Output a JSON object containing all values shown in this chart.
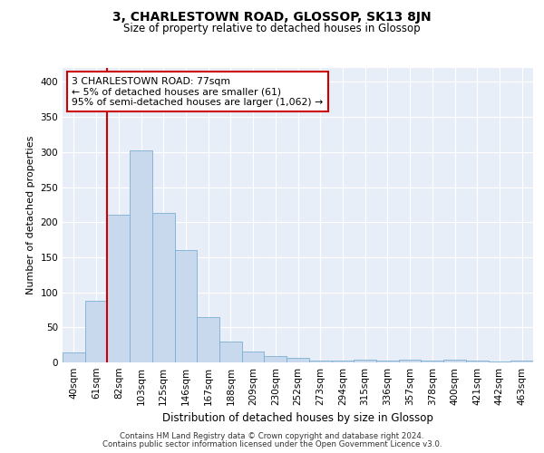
{
  "title": "3, CHARLESTOWN ROAD, GLOSSOP, SK13 8JN",
  "subtitle": "Size of property relative to detached houses in Glossop",
  "xlabel": "Distribution of detached houses by size in Glossop",
  "ylabel": "Number of detached properties",
  "bar_color": "#c9d9ed",
  "bar_edgecolor": "#7bafd4",
  "vline_color": "#cc0000",
  "vline_x": 1.5,
  "annotation_text": "3 CHARLESTOWN ROAD: 77sqm\n← 5% of detached houses are smaller (61)\n95% of semi-detached houses are larger (1,062) →",
  "annotation_box_facecolor": "#ffffff",
  "annotation_box_edgecolor": "#cc0000",
  "categories": [
    "40sqm",
    "61sqm",
    "82sqm",
    "103sqm",
    "125sqm",
    "146sqm",
    "167sqm",
    "188sqm",
    "209sqm",
    "230sqm",
    "252sqm",
    "273sqm",
    "294sqm",
    "315sqm",
    "336sqm",
    "357sqm",
    "378sqm",
    "400sqm",
    "421sqm",
    "442sqm",
    "463sqm"
  ],
  "values": [
    14,
    88,
    210,
    303,
    213,
    160,
    65,
    30,
    16,
    9,
    6,
    3,
    2,
    4,
    3,
    4,
    3,
    4,
    3,
    1,
    3
  ],
  "ylim": [
    0,
    420
  ],
  "yticks": [
    0,
    50,
    100,
    150,
    200,
    250,
    300,
    350,
    400
  ],
  "background_color": "#e8eef7",
  "grid_color": "#ffffff",
  "fig_facecolor": "#ffffff",
  "footer1": "Contains HM Land Registry data © Crown copyright and database right 2024.",
  "footer2": "Contains public sector information licensed under the Open Government Licence v3.0.",
  "title_fontsize": 10,
  "subtitle_fontsize": 8.5,
  "ylabel_fontsize": 8,
  "xlabel_fontsize": 8.5,
  "tick_fontsize": 7.5,
  "footer_fontsize": 6.2
}
